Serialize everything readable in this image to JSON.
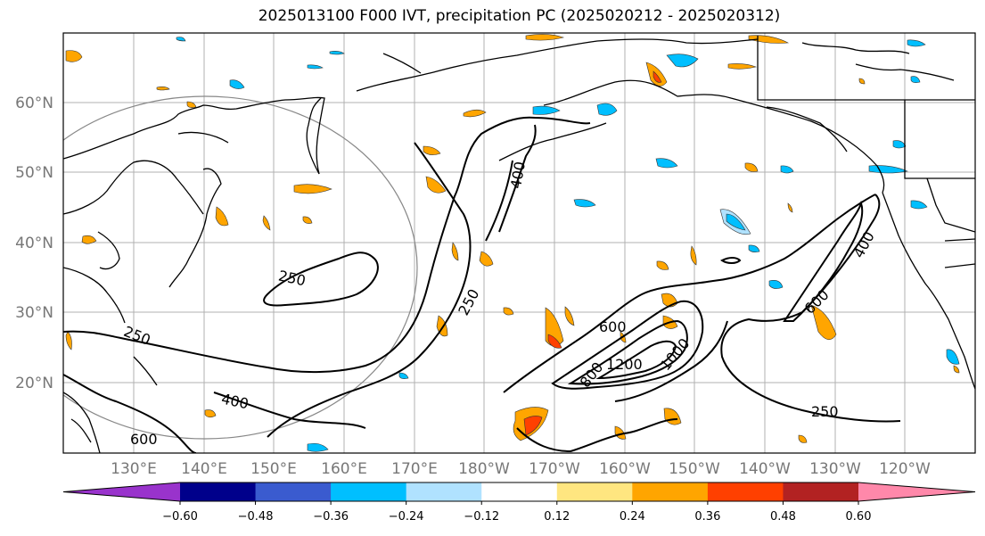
{
  "title": "2025013100 F000 IVT, precipitation PC (2025020212 - 2025020312)",
  "map": {
    "lat_labels": [
      "60°N",
      "50°N",
      "40°N",
      "30°N",
      "20°N"
    ],
    "lon_labels": [
      "130°E",
      "140°E",
      "150°E",
      "160°E",
      "170°E",
      "180°W",
      "170°W",
      "160°W",
      "150°W",
      "140°W",
      "130°W",
      "120°W"
    ],
    "ivt_contour_labels": [
      "250",
      "250",
      "250",
      "250",
      "400",
      "400",
      "400",
      "600",
      "600",
      "600",
      "800",
      "1000",
      "1200"
    ]
  },
  "colorbar": {
    "colors": [
      "#9933cc",
      "#00008b",
      "#3a5bcf",
      "#00bfff",
      "#b0e2ff",
      "#ffffff",
      "#ffe680",
      "#ffa500",
      "#ff4000",
      "#b22222",
      "#ff88aa"
    ],
    "tick_labels": [
      "−0.60",
      "−0.48",
      "−0.36",
      "−0.24",
      "−0.12",
      "0.12",
      "0.24",
      "0.36",
      "0.48",
      "0.60"
    ]
  }
}
